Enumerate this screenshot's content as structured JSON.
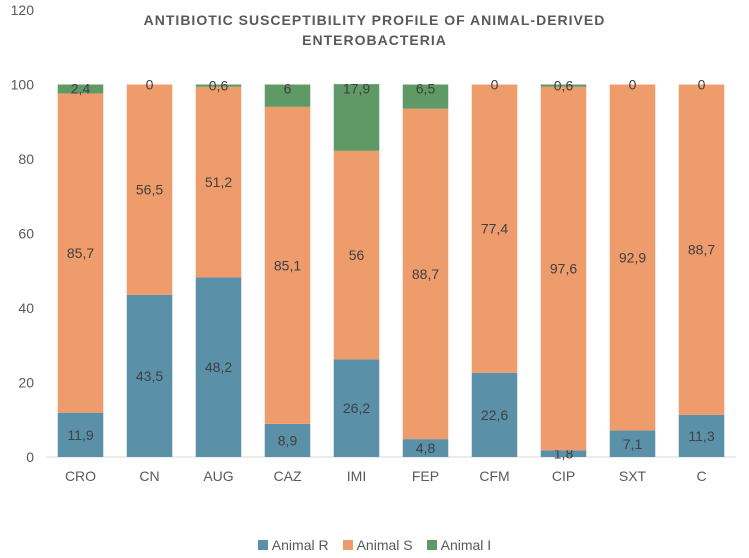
{
  "chart_data": {
    "type": "bar",
    "stacked": true,
    "title_line1": "ANTIBIOTIC SUSCEPTIBILITY PROFILE OF ANIMAL-DERIVED",
    "title_line2": "ENTEROBACTERIA",
    "categories": [
      "CRO",
      "CN",
      "AUG",
      "CAZ",
      "IMI",
      "FEP",
      "CFM",
      "CIP",
      "SXT",
      "C"
    ],
    "series": [
      {
        "name": "Animal R",
        "color": "#5b90a9",
        "values": [
          11.9,
          43.5,
          48.2,
          8.9,
          26.2,
          4.8,
          22.6,
          1.8,
          7.1,
          11.3
        ],
        "labels": [
          "11,9",
          "43,5",
          "48,2",
          "8,9",
          "26,2",
          "4,8",
          "22,6",
          "1,8",
          "7,1",
          "11,3"
        ]
      },
      {
        "name": "Animal S",
        "color": "#ef9c6d",
        "values": [
          85.7,
          56.5,
          51.2,
          85.1,
          56,
          88.7,
          77.4,
          97.6,
          92.9,
          88.7
        ],
        "labels": [
          "85,7",
          "56,5",
          "51,2",
          "85,1",
          "56",
          "88,7",
          "77,4",
          "97,6",
          "92,9",
          "88,7"
        ]
      },
      {
        "name": "Animal I",
        "color": "#5e9966",
        "values": [
          2.4,
          0,
          0.6,
          6,
          17.9,
          6.5,
          0,
          0.6,
          0,
          0
        ],
        "labels": [
          "2,4",
          "0",
          "0,6",
          "6",
          "17,9",
          "6,5",
          "0",
          "0,6",
          "0",
          "0"
        ]
      }
    ],
    "y_ticks": [
      "0",
      "20",
      "40",
      "60",
      "80",
      "100",
      "120"
    ],
    "ylim": [
      0,
      120
    ],
    "grid": false,
    "legend": "bottom"
  }
}
